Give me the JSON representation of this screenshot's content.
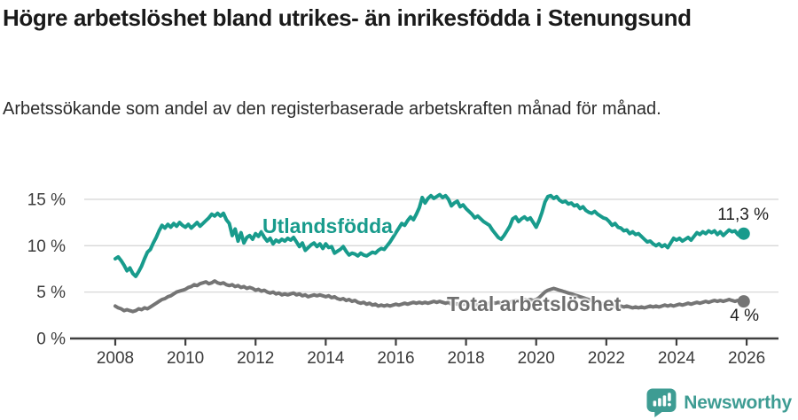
{
  "footer": {
    "brand": "Newsworthy"
  },
  "colors": {
    "accent_teal": "#189b8c",
    "line_gray": "#757575",
    "label_gray": "#6f6f6f",
    "grid": "#d8d8d8",
    "axis": "#3f3f3f",
    "axis_text": "#3b3b3b",
    "title_text": "#1a1a1a",
    "brand_teal": "#3e9c93"
  },
  "chart_data": {
    "type": "line",
    "title": "Högre arbetslöshet bland utrikes- än inrikesfödda i Stenungsund",
    "subtitle": "Arbetssökande som andel av den registerbaserade arbetskraften månad för månad.",
    "xlabel": "",
    "ylabel": "",
    "grid": true,
    "legend_position": "inline-labels",
    "xlim": [
      2008,
      2026.4
    ],
    "ylim": [
      0,
      16.4
    ],
    "x_start_year": 2008,
    "x_months_per_point": 1,
    "x_tick_labels": [
      "2008",
      "2010",
      "2012",
      "2014",
      "2016",
      "2018",
      "2020",
      "2022",
      "2024",
      "2026"
    ],
    "x_tick_values": [
      2008,
      2010,
      2012,
      2014,
      2016,
      2018,
      2020,
      2022,
      2024,
      2026
    ],
    "y_tick_labels": [
      "0 %",
      "5 %",
      "10 %",
      "15 %"
    ],
    "y_tick_values": [
      0,
      5,
      10,
      15
    ],
    "series": [
      {
        "name": "Utlandsfödda",
        "color": "#189b8c",
        "end_label": "11,3 %",
        "end_value": 11.3,
        "values": [
          8.6,
          8.8,
          8.4,
          7.9,
          7.3,
          7.6,
          7.0,
          6.7,
          7.2,
          7.8,
          8.6,
          9.3,
          9.6,
          10.3,
          10.9,
          11.6,
          12.2,
          11.9,
          12.3,
          12.0,
          12.4,
          12.1,
          12.5,
          12.2,
          12.0,
          12.3,
          11.9,
          12.2,
          12.5,
          12.1,
          12.4,
          12.7,
          13.0,
          13.4,
          13.2,
          13.5,
          13.2,
          13.5,
          12.8,
          12.4,
          11.1,
          11.8,
          10.5,
          11.4,
          10.3,
          10.9,
          11.1,
          10.7,
          11.3,
          11.0,
          11.5,
          10.9,
          10.5,
          10.8,
          10.2,
          10.6,
          10.4,
          10.7,
          10.5,
          10.8,
          10.6,
          10.9,
          10.4,
          9.9,
          10.3,
          9.5,
          9.8,
          10.1,
          10.3,
          9.9,
          10.2,
          9.7,
          10.2,
          9.8,
          9.9,
          9.2,
          9.4,
          9.6,
          9.9,
          9.4,
          9.0,
          9.2,
          9.1,
          8.9,
          9.2,
          9.0,
          8.9,
          9.1,
          9.3,
          9.2,
          9.5,
          9.7,
          9.6,
          10.0,
          10.4,
          10.9,
          11.4,
          11.9,
          12.4,
          12.2,
          12.7,
          13.1,
          12.8,
          13.4,
          14.1,
          15.2,
          14.6,
          15.1,
          15.4,
          15.1,
          15.3,
          15.5,
          15.2,
          15.4,
          15.0,
          14.3,
          14.6,
          14.8,
          14.2,
          14.4,
          14.0,
          13.7,
          13.4,
          13.0,
          13.2,
          12.9,
          12.6,
          12.4,
          12.2,
          11.7,
          11.3,
          10.9,
          10.7,
          11.1,
          11.6,
          12.1,
          12.9,
          13.1,
          12.6,
          12.9,
          13.1,
          12.8,
          13.0,
          12.5,
          12.0,
          12.7,
          13.6,
          14.7,
          15.3,
          15.4,
          15.1,
          15.3,
          14.9,
          14.7,
          14.8,
          14.5,
          14.6,
          14.3,
          14.4,
          14.0,
          14.2,
          13.8,
          13.6,
          13.5,
          13.7,
          13.4,
          13.2,
          13.0,
          12.9,
          12.6,
          12.2,
          12.4,
          12.0,
          11.9,
          11.6,
          11.7,
          11.3,
          11.5,
          11.2,
          11.3,
          11.0,
          10.7,
          10.4,
          10.5,
          10.2,
          10.0,
          10.2,
          9.9,
          10.1,
          9.8,
          10.3,
          10.8,
          10.6,
          10.8,
          10.5,
          10.7,
          10.9,
          10.6,
          11.0,
          11.4,
          11.2,
          11.5,
          11.3,
          11.6,
          11.4,
          11.6,
          11.2,
          11.5,
          11.1,
          11.4,
          11.7,
          11.5,
          11.6,
          11.2,
          11.0,
          11.3
        ]
      },
      {
        "name": "Total arbetslöshet",
        "color": "#757575",
        "end_label": "4 %",
        "end_value": 4.0,
        "values": [
          3.5,
          3.3,
          3.2,
          3.0,
          3.1,
          3.0,
          2.9,
          3.0,
          3.2,
          3.1,
          3.3,
          3.2,
          3.4,
          3.6,
          3.8,
          4.0,
          4.2,
          4.3,
          4.5,
          4.6,
          4.8,
          5.0,
          5.1,
          5.2,
          5.3,
          5.5,
          5.6,
          5.8,
          5.7,
          5.9,
          6.0,
          6.1,
          5.9,
          6.0,
          6.2,
          6.0,
          5.9,
          6.0,
          5.8,
          5.7,
          5.8,
          5.6,
          5.7,
          5.5,
          5.6,
          5.4,
          5.5,
          5.4,
          5.2,
          5.3,
          5.1,
          5.2,
          5.0,
          4.9,
          5.0,
          4.8,
          4.9,
          4.7,
          4.8,
          4.7,
          4.8,
          4.9,
          4.7,
          4.8,
          4.6,
          4.7,
          4.5,
          4.6,
          4.7,
          4.6,
          4.7,
          4.6,
          4.5,
          4.6,
          4.4,
          4.5,
          4.3,
          4.2,
          4.3,
          4.1,
          4.2,
          4.0,
          4.1,
          3.9,
          3.8,
          3.9,
          3.7,
          3.8,
          3.6,
          3.7,
          3.5,
          3.6,
          3.5,
          3.6,
          3.5,
          3.6,
          3.7,
          3.6,
          3.7,
          3.8,
          3.7,
          3.8,
          3.9,
          3.8,
          3.9,
          3.8,
          3.9,
          3.8,
          3.9,
          4.0,
          3.9,
          4.0,
          3.9,
          3.8,
          3.9,
          3.7,
          3.8,
          3.7,
          3.8,
          3.7,
          3.8,
          3.7,
          3.6,
          3.7,
          3.6,
          3.7,
          3.8,
          3.7,
          3.8,
          3.9,
          3.8,
          3.9,
          3.8,
          3.9,
          4.0,
          3.9,
          4.0,
          4.1,
          4.0,
          4.1,
          4.2,
          4.1,
          4.2,
          4.1,
          4.2,
          4.4,
          4.7,
          5.0,
          5.2,
          5.3,
          5.4,
          5.3,
          5.2,
          5.1,
          5.0,
          4.9,
          4.8,
          4.7,
          4.6,
          4.5,
          4.4,
          4.3,
          4.2,
          4.1,
          4.0,
          3.9,
          3.8,
          3.7,
          3.6,
          3.5,
          3.6,
          3.5,
          3.4,
          3.5,
          3.4,
          3.5,
          3.4,
          3.3,
          3.4,
          3.3,
          3.4,
          3.3,
          3.4,
          3.5,
          3.4,
          3.5,
          3.4,
          3.5,
          3.6,
          3.5,
          3.6,
          3.5,
          3.6,
          3.7,
          3.6,
          3.7,
          3.8,
          3.7,
          3.8,
          3.9,
          3.8,
          3.9,
          4.0,
          3.9,
          4.0,
          4.1,
          4.0,
          4.1,
          4.0,
          4.1,
          4.2,
          4.1,
          4.0,
          4.1,
          4.0,
          4.0
        ]
      }
    ]
  }
}
